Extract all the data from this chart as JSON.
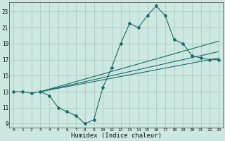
{
  "xlabel": "Humidex (Indice chaleur)",
  "bg_color": "#cce8e0",
  "grid_color": "#aaccc4",
  "line_color": "#1a6b6b",
  "xlim": [
    -0.5,
    23.5
  ],
  "ylim": [
    8.5,
    24.2
  ],
  "xticks": [
    0,
    1,
    2,
    3,
    4,
    5,
    6,
    7,
    8,
    9,
    10,
    11,
    12,
    13,
    14,
    15,
    16,
    17,
    18,
    19,
    20,
    21,
    22,
    23
  ],
  "yticks": [
    9,
    11,
    13,
    15,
    17,
    19,
    21,
    23
  ],
  "main_x": [
    0,
    1,
    2,
    3,
    4,
    5,
    6,
    7,
    8,
    9,
    10,
    11,
    12,
    13,
    14,
    15,
    16,
    17,
    18,
    19,
    20,
    21,
    22,
    23
  ],
  "main_y": [
    13,
    13,
    12.8,
    13,
    12.5,
    11,
    10.5,
    10,
    9,
    9.5,
    13.5,
    16,
    19,
    21.5,
    21,
    22.5,
    23.7,
    22.5,
    19.5,
    19,
    17.5,
    17.2,
    17,
    17
  ],
  "trend1_x": [
    3,
    23
  ],
  "trend1_y": [
    13,
    17.2
  ],
  "trend2_x": [
    3,
    23
  ],
  "trend2_y": [
    13,
    18.0
  ],
  "trend3_x": [
    3,
    23
  ],
  "trend3_y": [
    13,
    19.3
  ]
}
